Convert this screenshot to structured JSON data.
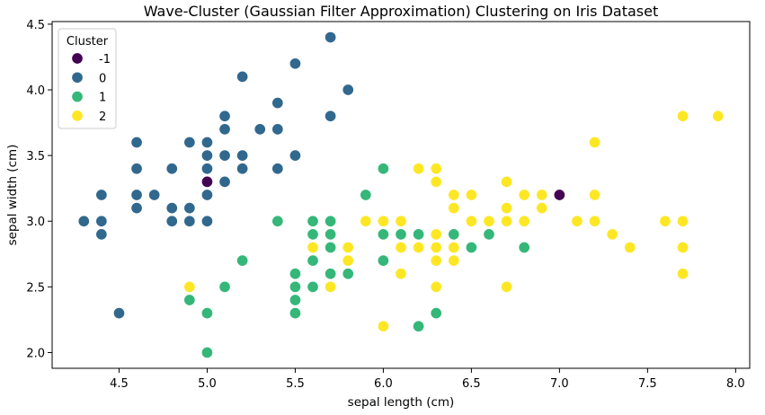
{
  "chart_data": {
    "type": "scatter",
    "title": "Wave-Cluster (Gaussian Filter Approximation) Clustering on Iris Dataset",
    "xlabel": "sepal length (cm)",
    "ylabel": "sepal width (cm)",
    "xlim": [
      4.12,
      8.08
    ],
    "ylim": [
      1.88,
      4.52
    ],
    "xticks": [
      4.5,
      5.0,
      5.5,
      6.0,
      6.5,
      7.0,
      7.5,
      8.0
    ],
    "xtick_labels": [
      "4.5",
      "5.0",
      "5.5",
      "6.0",
      "6.5",
      "7.0",
      "7.5",
      "8.0"
    ],
    "yticks": [
      2.0,
      2.5,
      3.0,
      3.5,
      4.0,
      4.5
    ],
    "ytick_labels": [
      "2.0",
      "2.5",
      "3.0",
      "3.5",
      "4.0",
      "4.5"
    ],
    "grid": false,
    "legend": {
      "title": "Cluster",
      "placement": "top-left"
    },
    "series": [
      {
        "name": "-1",
        "color": "#440154",
        "points": [
          [
            5.0,
            3.3
          ],
          [
            7.0,
            3.2
          ]
        ]
      },
      {
        "name": "0",
        "color": "#31688e",
        "points": [
          [
            5.1,
            3.5
          ],
          [
            4.9,
            3.0
          ],
          [
            4.7,
            3.2
          ],
          [
            4.6,
            3.1
          ],
          [
            5.0,
            3.6
          ],
          [
            5.4,
            3.9
          ],
          [
            4.6,
            3.4
          ],
          [
            5.0,
            3.4
          ],
          [
            4.4,
            2.9
          ],
          [
            4.9,
            3.1
          ],
          [
            5.4,
            3.7
          ],
          [
            4.8,
            3.4
          ],
          [
            4.8,
            3.0
          ],
          [
            4.3,
            3.0
          ],
          [
            5.8,
            4.0
          ],
          [
            5.7,
            4.4
          ],
          [
            5.1,
            3.8
          ],
          [
            5.7,
            3.8
          ],
          [
            5.1,
            3.7
          ],
          [
            5.4,
            3.4
          ],
          [
            4.6,
            3.6
          ],
          [
            5.1,
            3.3
          ],
          [
            4.8,
            3.1
          ],
          [
            5.2,
            3.5
          ],
          [
            5.2,
            3.4
          ],
          [
            5.2,
            4.1
          ],
          [
            5.5,
            4.2
          ],
          [
            5.0,
            3.2
          ],
          [
            5.5,
            3.5
          ],
          [
            4.4,
            3.0
          ],
          [
            4.5,
            2.3
          ],
          [
            4.4,
            3.2
          ],
          [
            5.0,
            3.5
          ],
          [
            5.1,
            3.8
          ],
          [
            5.3,
            3.7
          ],
          [
            5.0,
            3.0
          ],
          [
            4.6,
            3.2
          ],
          [
            4.9,
            3.6
          ],
          [
            5.5,
            3.5
          ]
        ]
      },
      {
        "name": "1",
        "color": "#35b779",
        "points": [
          [
            5.5,
            2.3
          ],
          [
            5.7,
            2.8
          ],
          [
            4.9,
            2.4
          ],
          [
            5.2,
            2.7
          ],
          [
            5.0,
            2.0
          ],
          [
            5.9,
            3.2
          ],
          [
            6.0,
            2.2
          ],
          [
            6.1,
            2.9
          ],
          [
            5.6,
            2.9
          ],
          [
            5.6,
            3.0
          ],
          [
            5.8,
            2.7
          ],
          [
            6.2,
            2.2
          ],
          [
            5.6,
            2.5
          ],
          [
            6.1,
            2.8
          ],
          [
            6.4,
            2.9
          ],
          [
            6.6,
            3.0
          ],
          [
            6.8,
            2.8
          ],
          [
            6.0,
            2.9
          ],
          [
            5.7,
            2.6
          ],
          [
            5.5,
            2.4
          ],
          [
            5.8,
            2.7
          ],
          [
            6.0,
            2.7
          ],
          [
            5.4,
            3.0
          ],
          [
            6.0,
            3.4
          ],
          [
            6.3,
            2.3
          ],
          [
            5.6,
            3.0
          ],
          [
            5.5,
            2.5
          ],
          [
            5.5,
            2.6
          ],
          [
            6.1,
            3.0
          ],
          [
            5.0,
            2.3
          ],
          [
            5.6,
            2.7
          ],
          [
            5.7,
            3.0
          ],
          [
            5.7,
            2.9
          ],
          [
            6.2,
            2.9
          ],
          [
            5.1,
            2.5
          ],
          [
            5.7,
            2.8
          ],
          [
            6.6,
            2.9
          ],
          [
            6.5,
            2.8
          ],
          [
            5.5,
            2.5
          ],
          [
            5.6,
            2.9
          ],
          [
            5.8,
            2.6
          ]
        ]
      },
      {
        "name": "2",
        "color": "#fde725",
        "points": [
          [
            6.3,
            3.3
          ],
          [
            5.8,
            2.7
          ],
          [
            7.1,
            3.0
          ],
          [
            6.3,
            2.9
          ],
          [
            6.5,
            3.0
          ],
          [
            7.6,
            3.0
          ],
          [
            4.9,
            2.5
          ],
          [
            7.3,
            2.9
          ],
          [
            6.7,
            2.5
          ],
          [
            7.2,
            3.6
          ],
          [
            6.5,
            3.2
          ],
          [
            6.4,
            2.7
          ],
          [
            6.8,
            3.0
          ],
          [
            5.7,
            2.5
          ],
          [
            5.8,
            2.8
          ],
          [
            6.4,
            3.2
          ],
          [
            7.7,
            3.8
          ],
          [
            7.7,
            2.6
          ],
          [
            6.0,
            2.2
          ],
          [
            6.9,
            3.2
          ],
          [
            5.6,
            2.8
          ],
          [
            7.7,
            2.8
          ],
          [
            6.3,
            2.7
          ],
          [
            6.7,
            3.3
          ],
          [
            7.2,
            3.2
          ],
          [
            6.2,
            2.8
          ],
          [
            6.1,
            3.0
          ],
          [
            6.4,
            2.8
          ],
          [
            7.2,
            3.0
          ],
          [
            7.4,
            2.8
          ],
          [
            7.9,
            3.8
          ],
          [
            6.3,
            2.8
          ],
          [
            6.1,
            2.6
          ],
          [
            7.7,
            3.0
          ],
          [
            6.3,
            3.4
          ],
          [
            6.4,
            3.1
          ],
          [
            6.0,
            3.0
          ],
          [
            6.9,
            3.1
          ],
          [
            6.7,
            3.1
          ],
          [
            6.9,
            3.1
          ],
          [
            6.8,
            3.2
          ],
          [
            6.7,
            3.0
          ],
          [
            6.3,
            2.5
          ],
          [
            6.5,
            3.0
          ],
          [
            6.2,
            3.4
          ],
          [
            5.9,
            3.0
          ],
          [
            6.6,
            3.0
          ],
          [
            6.7,
            3.1
          ],
          [
            6.3,
            2.5
          ],
          [
            6.1,
            2.8
          ],
          [
            5.8,
            2.8
          ],
          [
            6.0,
            3.0
          ]
        ]
      }
    ]
  }
}
